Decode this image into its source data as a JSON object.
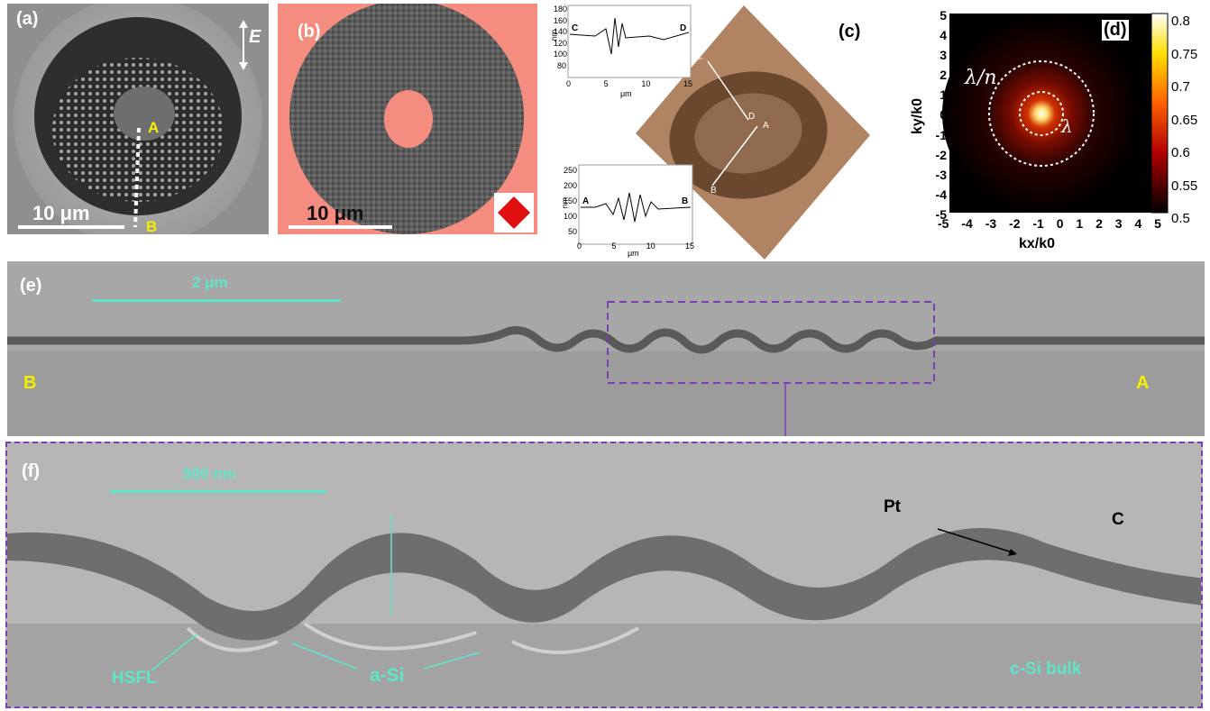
{
  "panels": {
    "a": {
      "label": "(a)",
      "field_label": "E",
      "point_a": "A",
      "point_b": "B",
      "scale": "10 μm"
    },
    "b": {
      "label": "(b)",
      "scale": "10 μm"
    },
    "c": {
      "label": "(c)",
      "points": {
        "c": "C",
        "d": "D",
        "a": "A",
        "b": "B"
      },
      "profile_cd": {
        "ylabel": "nm",
        "xlabel": "μm",
        "yticks": [
          "180",
          "160",
          "140",
          "120",
          "100",
          "80"
        ],
        "xticks": [
          "0",
          "5",
          "10",
          "15"
        ],
        "left": "C",
        "right": "D"
      },
      "profile_ab": {
        "ylabel": "nm",
        "xlabel": "μm",
        "yticks": [
          "250",
          "200",
          "150",
          "100",
          "50"
        ],
        "xticks": [
          "0",
          "5",
          "10",
          "15"
        ],
        "left": "A",
        "right": "B"
      }
    },
    "d": {
      "label": "(d)",
      "ring_outer_label": "λ/n",
      "ring_inner_label": "λ",
      "xlabel": "kx/k0",
      "ylabel": "ky/k0",
      "ticks": [
        "5",
        "4",
        "3",
        "2",
        "1",
        "0",
        "-1",
        "-2",
        "-3",
        "-4",
        "-5"
      ],
      "xticks": [
        "-5",
        "-4",
        "-3",
        "-2",
        "-1",
        "0",
        "1",
        "2",
        "3",
        "4",
        "5"
      ],
      "colorbar_ticks": [
        "0.8",
        "0.75",
        "0.7",
        "0.65",
        "0.6",
        "0.55",
        "0.5"
      ]
    },
    "e": {
      "label": "(e)",
      "scale": "2 μm",
      "left_end": "B",
      "right_end": "A"
    },
    "f": {
      "label": "(f)",
      "scale": "500 nm",
      "pt_label": "Pt",
      "c_label": "C",
      "hsfl_label": "HSFL",
      "asi_label": "a-Si",
      "bulk_label": "c-Si bulk"
    }
  },
  "colors": {
    "accent_cyan": "#5ee6c8",
    "point_yellow": "#f4f000",
    "dashed_box": "#7b3fb5",
    "map_red": "#f48c80"
  }
}
